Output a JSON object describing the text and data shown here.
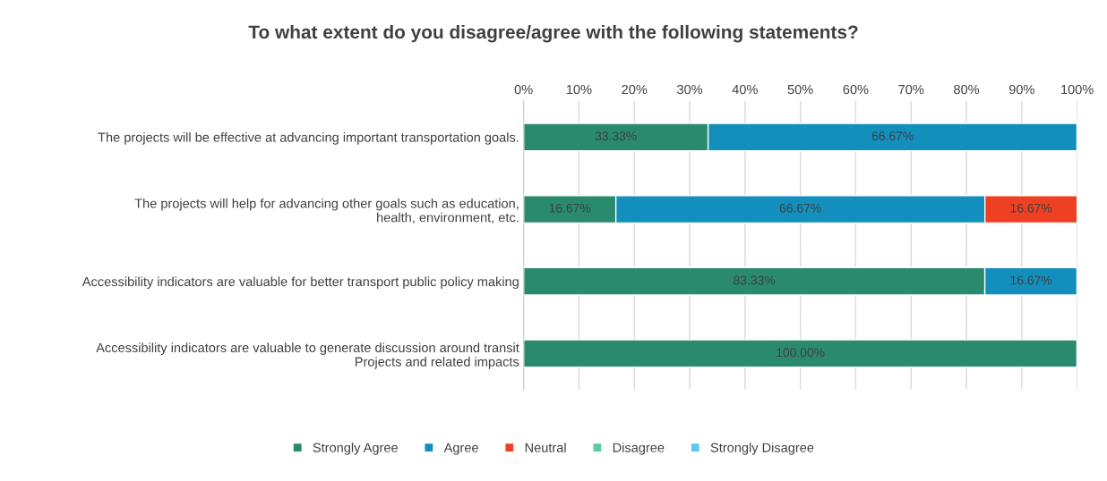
{
  "chart_data": {
    "type": "bar",
    "orientation": "horizontal",
    "stacked": true,
    "title": "To what extent do you disagree/agree with the following statements?",
    "categories": [
      "The projects will be effective at advancing important transportation goals.",
      "The projects will help for advancing other goals such as education, health, environment, etc.",
      "Accessibility indicators are valuable for better transport public policy making",
      "Accessibility indicators are valuable to generate discussion around transit Projects and related impacts"
    ],
    "series": [
      {
        "name": "Strongly Agree",
        "color": "#2a8a6e",
        "values": [
          33.33,
          16.67,
          83.33,
          100
        ],
        "value_labels": [
          "33.33%",
          "16.67%",
          "83.33%",
          "100.00%"
        ]
      },
      {
        "name": "Agree",
        "color": "#138fbe",
        "values": [
          66.67,
          66.67,
          16.67,
          0
        ],
        "value_labels": [
          "66.67%",
          "66.67%",
          "16.67%",
          null
        ]
      },
      {
        "name": "Neutral",
        "color": "#f04023",
        "values": [
          0,
          16.67,
          0,
          0
        ],
        "value_labels": [
          null,
          "16.67%",
          null,
          null
        ]
      },
      {
        "name": "Disagree",
        "color": "#5bcaa6",
        "values": [
          0,
          0,
          0,
          0
        ],
        "value_labels": [
          null,
          null,
          null,
          null
        ]
      },
      {
        "name": "Strongly Disagree",
        "color": "#5ac8ef",
        "values": [
          0,
          0,
          0,
          0
        ],
        "value_labels": [
          null,
          null,
          null,
          null
        ]
      }
    ],
    "xlim": [
      0,
      100
    ],
    "xticks": [
      {
        "value": 0,
        "label": "0%"
      },
      {
        "value": 10,
        "label": "10%"
      },
      {
        "value": 20,
        "label": "20%"
      },
      {
        "value": 30,
        "label": "30%"
      },
      {
        "value": 40,
        "label": "40%"
      },
      {
        "value": 50,
        "label": "50%"
      },
      {
        "value": 60,
        "label": "60%"
      },
      {
        "value": 70,
        "label": "70%"
      },
      {
        "value": 80,
        "label": "80%"
      },
      {
        "value": 90,
        "label": "90%"
      },
      {
        "value": 100,
        "label": "100%"
      }
    ],
    "grid": "x",
    "legend": "bottom"
  }
}
